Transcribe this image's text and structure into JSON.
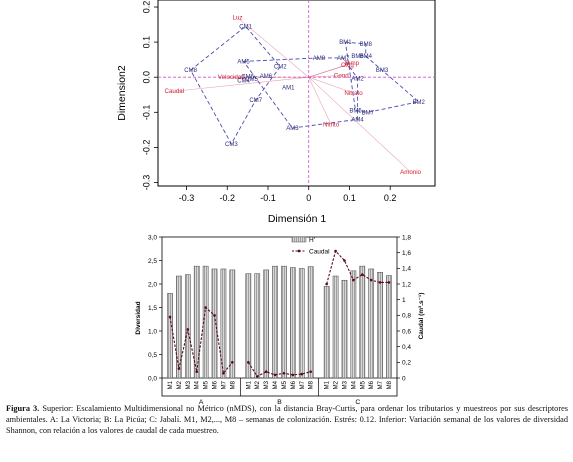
{
  "caption": {
    "label": "Figura 3.",
    "text": "Superior: Escalamiento Multidimensional no Métrico (nMDS), con la distancia Bray-Curtis, para ordenar los tributarios y muestreos por sus descriptores ambientales. A: La Victoria; B: La Picúa; C: Jabalí. M1, M2,..., M8 – semanas de colonización. Estrés: 0.12. Inferior: Variación semanal de los valores de diversidad Shannon, con relación a los valores de caudal de cada muestreo."
  },
  "chart_data": [
    {
      "type": "scatter",
      "title": "",
      "xlabel": "Dimensión 1",
      "ylabel": "Dimension2",
      "xlim": [
        -0.37,
        0.31
      ],
      "ylim": [
        -0.31,
        0.22
      ],
      "xticks": [
        -0.3,
        -0.2,
        -0.1,
        0,
        0.1,
        0.2
      ],
      "xtick_labels": [
        "-0.3",
        "-0.2",
        "-0.1",
        "0",
        "0.1",
        "0.2"
      ],
      "yticks": [
        -0.3,
        -0.2,
        -0.1,
        0,
        0.1,
        0.2
      ],
      "ytick_labels": [
        "-0.3",
        "-0.2",
        "-0.1",
        "0.0",
        "0.1",
        "0.2"
      ],
      "colors": {
        "points": "#2b2b7a",
        "hull": "#4a4aaf",
        "vectors": "#cc3366",
        "vector_labels": "#cc2233"
      },
      "points": [
        {
          "label": "CM1",
          "x": -0.155,
          "y": 0.145
        },
        {
          "label": "CM2",
          "x": -0.07,
          "y": 0.03
        },
        {
          "label": "CM3",
          "x": -0.19,
          "y": -0.19
        },
        {
          "label": "CM4",
          "x": -0.16,
          "y": -0.01
        },
        {
          "label": "CM5",
          "x": -0.14,
          "y": -0.005
        },
        {
          "label": "CM6",
          "x": -0.15,
          "y": 0.002
        },
        {
          "label": "CM7",
          "x": -0.13,
          "y": -0.065
        },
        {
          "label": "CM8",
          "x": -0.29,
          "y": 0.02
        },
        {
          "label": "AM1",
          "x": -0.05,
          "y": -0.03
        },
        {
          "label": "AM2",
          "x": 0.12,
          "y": -0.004
        },
        {
          "label": "AM3",
          "x": -0.04,
          "y": -0.145
        },
        {
          "label": "AM4",
          "x": 0.12,
          "y": -0.12
        },
        {
          "label": "AM5",
          "x": -0.16,
          "y": 0.045
        },
        {
          "label": "AM6",
          "x": -0.105,
          "y": 0.003
        },
        {
          "label": "AM7",
          "x": 0.085,
          "y": 0.055
        },
        {
          "label": "AM8",
          "x": 0.025,
          "y": 0.055
        },
        {
          "label": "BM1",
          "x": 0.09,
          "y": 0.1
        },
        {
          "label": "BM2",
          "x": 0.27,
          "y": -0.07
        },
        {
          "label": "BM3",
          "x": 0.18,
          "y": 0.02
        },
        {
          "label": "BM4",
          "x": 0.14,
          "y": 0.06
        },
        {
          "label": "BM5",
          "x": 0.115,
          "y": -0.095
        },
        {
          "label": "BM6",
          "x": 0.12,
          "y": 0.06
        },
        {
          "label": "BM7",
          "x": 0.145,
          "y": -0.1
        },
        {
          "label": "BM8",
          "x": 0.14,
          "y": 0.095
        }
      ],
      "hulls": [
        [
          "CM8",
          "CM1",
          "CM2",
          "CM7",
          "CM3",
          "CM8"
        ],
        [
          "AM5",
          "AM8",
          "AM7",
          "AM2",
          "AM4",
          "AM3",
          "AM5"
        ],
        [
          "BM1",
          "BM8",
          "BM4",
          "BM3",
          "BM2",
          "BM7",
          "BM5",
          "BM1"
        ]
      ],
      "vectors": [
        {
          "label": "Luz",
          "x": -0.175,
          "y": 0.17
        },
        {
          "label": "Amonio",
          "x": 0.25,
          "y": -0.27
        },
        {
          "label": "Velocidad",
          "x": -0.19,
          "y": 0
        },
        {
          "label": "Caudal",
          "x": -0.33,
          "y": -0.04
        },
        {
          "label": "Nitrato",
          "x": 0.11,
          "y": -0.045
        },
        {
          "label": "Cond",
          "x": 0.08,
          "y": 0.005
        },
        {
          "label": "Oxig",
          "x": 0.095,
          "y": 0.035
        },
        {
          "label": "Temp",
          "x": 0.105,
          "y": 0.04
        },
        {
          "label": "Nitrito",
          "x": 0.055,
          "y": -0.135
        }
      ]
    },
    {
      "type": "bar",
      "title": "",
      "ylabel": "Diversidad",
      "y2label": "Caudal (m³.s⁻¹)",
      "ylim": [
        0,
        3
      ],
      "y2lim": [
        0,
        1.8
      ],
      "yticks": [
        0,
        0.5,
        1,
        1.5,
        2,
        2.5,
        3
      ],
      "ytick_labels": [
        "0,0",
        "0,5",
        "1,0",
        "1,5",
        "2,0",
        "2,5",
        "3,0"
      ],
      "y2ticks": [
        0,
        0.2,
        0.4,
        0.6,
        0.8,
        1,
        1.2,
        1.4,
        1.6,
        1.8
      ],
      "y2tick_labels": [
        "0",
        "0,2",
        "0,4",
        "0,6",
        "0,8",
        "1",
        "1,2",
        "1,4",
        "1,6",
        "1,8"
      ],
      "legend": "top-right",
      "groups": [
        "A",
        "B",
        "C"
      ],
      "categories": [
        "M1",
        "M2",
        "M3",
        "M4",
        "M5",
        "M6",
        "M7",
        "M8"
      ],
      "series": [
        {
          "name": "H'",
          "kind": "bar",
          "values": [
            [
              1.8,
              2.17,
              2.2,
              2.38,
              2.38,
              2.32,
              2.32,
              2.3
            ],
            [
              2.22,
              2.22,
              2.3,
              2.38,
              2.38,
              2.35,
              2.33,
              2.37
            ],
            [
              1.95,
              2.17,
              2.08,
              2.28,
              2.38,
              2.32,
              2.25,
              2.18
            ]
          ]
        },
        {
          "name": "Caudal",
          "kind": "line",
          "axis": "right",
          "values": [
            [
              0.78,
              0.12,
              0.62,
              0.08,
              0.9,
              0.8,
              0.06,
              0.2
            ],
            [
              0.2,
              0.02,
              0.08,
              0.04,
              0.06,
              0.04,
              0.05,
              0.08
            ],
            [
              1.2,
              1.62,
              1.5,
              1.25,
              1.32,
              1.25,
              1.22,
              1.22
            ]
          ]
        }
      ]
    }
  ]
}
